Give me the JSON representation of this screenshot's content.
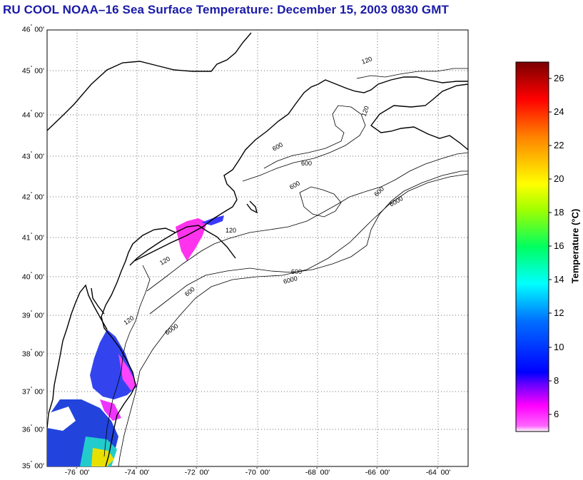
{
  "title": "RU COOL  NOAA–16  Sea Surface Temperature:  December 15, 2003 0830 GMT",
  "map": {
    "lon_range": [
      -77,
      -63
    ],
    "lat_range": [
      35,
      46
    ],
    "grid": true,
    "lat_labels": [
      "46",
      "45",
      "44",
      "43",
      "42",
      "41",
      "40",
      "39",
      "38",
      "37",
      "36",
      "35"
    ],
    "lon_labels": [
      "-76",
      "-74",
      "-72",
      "-70",
      "-68",
      "-66",
      "-64"
    ],
    "minute_label": "00'",
    "degree_symbol": "°",
    "contour_labels": [
      "120",
      "120",
      "120",
      "120",
      "600",
      "600",
      "600",
      "600",
      "600",
      "6000",
      "6000",
      "6000",
      "600",
      "120"
    ]
  },
  "colorbar": {
    "label": "Temperature (°C)",
    "range": [
      5,
      27
    ],
    "ticks": [
      "26",
      "24",
      "22",
      "20",
      "18",
      "16",
      "14",
      "12",
      "10",
      "8",
      "6"
    ],
    "colors": [
      "#ff00ff",
      "#0000ff",
      "#00ffff",
      "#00ff00",
      "#ffff00",
      "#ff8000",
      "#ff0000",
      "#800000"
    ]
  }
}
